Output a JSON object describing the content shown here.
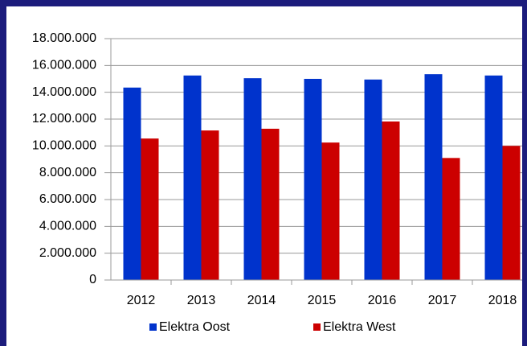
{
  "chart_data": {
    "type": "bar",
    "categories": [
      "2012",
      "2013",
      "2014",
      "2015",
      "2016",
      "2017",
      "2018"
    ],
    "series": [
      {
        "name": "Elektra Oost",
        "color": "#0033cc",
        "values": [
          14350000,
          15250000,
          15050000,
          15000000,
          14950000,
          15350000,
          15250000
        ]
      },
      {
        "name": "Elektra West",
        "color": "#cc0000",
        "values": [
          10550000,
          11150000,
          11280000,
          10250000,
          11820000,
          9100000,
          10000000
        ]
      }
    ],
    "ylim": [
      0,
      18000000
    ],
    "yticks": [
      0,
      {
        "value": 2000000,
        "label": "2.000.000"
      },
      {
        "value": 4000000,
        "label": "4.000.000"
      },
      {
        "value": 6000000,
        "label": "6.000.000"
      },
      {
        "value": 8000000,
        "label": "8.000.000"
      },
      {
        "value": 10000000,
        "label": "10.000.000"
      },
      {
        "value": 12000000,
        "label": "12.000.000"
      },
      {
        "value": 14000000,
        "label": "14.000.000"
      },
      {
        "value": 16000000,
        "label": "16.000.000"
      },
      {
        "value": 18000000,
        "label": "18.000.000"
      }
    ],
    "grid": true,
    "legend": "bottom"
  }
}
